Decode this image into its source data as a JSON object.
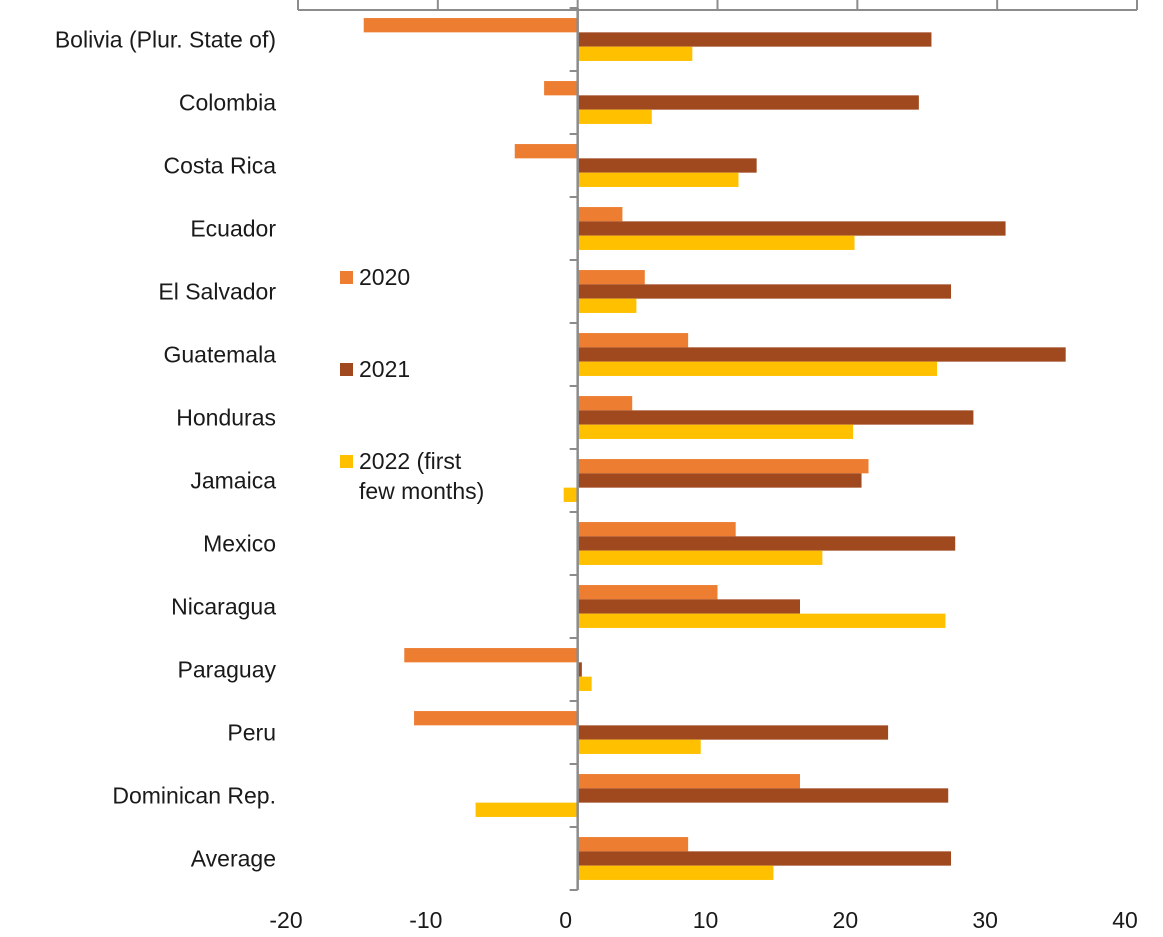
{
  "chart_data": {
    "type": "bar",
    "orientation": "horizontal",
    "categories": [
      "Bolivia (Plur. State of)",
      "Colombia",
      "Costa Rica",
      "Ecuador",
      "El Salvador",
      "Guatemala",
      "Honduras",
      "Jamaica",
      "Mexico",
      "Nicaragua",
      "Paraguay",
      "Peru",
      "Dominican Rep.",
      "Average"
    ],
    "series": [
      {
        "name": "2020",
        "color": "#ed7d31",
        "values": [
          -15.3,
          -2.4,
          -4.5,
          3.2,
          4.8,
          7.9,
          3.9,
          20.8,
          11.3,
          10.0,
          -12.4,
          -11.7,
          15.9,
          7.9
        ]
      },
      {
        "name": "2021",
        "color": "#a0491f",
        "values": [
          25.3,
          24.4,
          12.8,
          30.6,
          26.7,
          34.9,
          28.3,
          20.3,
          27.0,
          15.9,
          0.3,
          22.2,
          26.5,
          26.7
        ]
      },
      {
        "name": "2022 (first\nfew months)",
        "color": "#ffc000",
        "values": [
          8.2,
          5.3,
          11.5,
          19.8,
          4.2,
          25.7,
          19.7,
          -1.0,
          17.5,
          26.3,
          1.0,
          8.8,
          -7.3,
          14.0
        ]
      }
    ],
    "x_ticks": [
      "-20",
      "-10",
      "0",
      "10",
      "20",
      "30",
      "40"
    ],
    "xlim": [
      -20,
      40
    ],
    "grid": false,
    "legend_position": "center-left"
  }
}
